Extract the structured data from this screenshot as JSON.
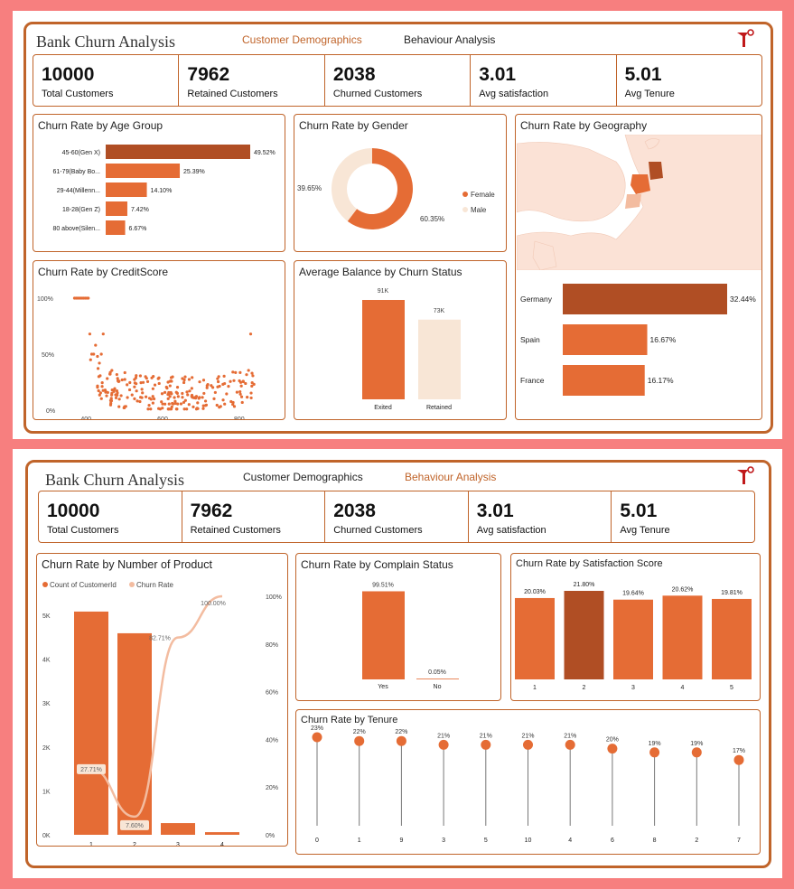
{
  "page1": {
    "title": "Bank Churn Analysis",
    "nav": [
      "Customer Demographics",
      "Behaviour Analysis"
    ],
    "kpis": [
      {
        "value": "10000",
        "label": "Total Customers"
      },
      {
        "value": "7962",
        "label": "Retained Customers"
      },
      {
        "value": "2038",
        "label": "Churned Customers"
      },
      {
        "value": "3.01",
        "label": "Avg satisfaction"
      },
      {
        "value": "5.01",
        "label": "Avg Tenure"
      }
    ],
    "age_title": "Churn Rate by Age Group",
    "gender_title": "Churn Rate by Gender",
    "geo_title": "Churn Rate by Geography",
    "credit_title": "Churn Rate by CreditScore",
    "balance_title": "Average Balance by Churn Status"
  },
  "page2": {
    "title": "Bank Churn Analysis",
    "nav": [
      "Customer Demographics",
      "Behaviour Analysis"
    ],
    "kpis": [
      {
        "value": "10000",
        "label": "Total Customers"
      },
      {
        "value": "7962",
        "label": "Retained Customers"
      },
      {
        "value": "2038",
        "label": "Churned Customers"
      },
      {
        "value": "3.01",
        "label": "Avg satisfaction"
      },
      {
        "value": "5.01",
        "label": "Avg Tenure"
      }
    ],
    "product_title": "Churn Rate by Number of Product",
    "complain_title": "Churn Rate by Complain Status",
    "satisfaction_title": "Churn Rate by Satisfaction Score",
    "tenure_title": "Churn Rate by Tenure"
  },
  "colors": {
    "dark": "#b04e24",
    "main": "#e56c35",
    "light": "#f3bca0",
    "pale": "#f8e6d6",
    "border": "#c0642a"
  },
  "chart_data": [
    {
      "type": "bar",
      "title": "Churn Rate by Age Group",
      "orientation": "horizontal",
      "categories": [
        "45-60(Gen X)",
        "61-79(Baby Bo...",
        "29-44(Millenn...",
        "18-28(Gen Z)",
        "80 above(Silen..."
      ],
      "values": [
        49.52,
        25.39,
        14.1,
        7.42,
        6.67
      ],
      "labels": [
        "49.52%",
        "25.39%",
        "14.10%",
        "7.42%",
        "6.67%"
      ]
    },
    {
      "type": "pie",
      "title": "Churn Rate by Gender",
      "donut": true,
      "categories": [
        "Female",
        "Male"
      ],
      "values": [
        60.35,
        39.65
      ],
      "labels": [
        "60.35%",
        "39.65%"
      ]
    },
    {
      "type": "bar",
      "title": "Churn Rate by Geography",
      "orientation": "horizontal",
      "categories": [
        "Germany",
        "Spain",
        "France"
      ],
      "values": [
        32.44,
        16.67,
        16.17
      ],
      "labels": [
        "32.44%",
        "16.67%",
        "16.17%"
      ]
    },
    {
      "type": "scatter",
      "title": "Churn Rate by CreditScore",
      "xticks": [
        "400",
        "600",
        "800"
      ],
      "yticks": [
        "0%",
        "50%",
        "100%"
      ],
      "xlim": [
        350,
        850
      ],
      "ylim": [
        0,
        100
      ]
    },
    {
      "type": "bar",
      "title": "Average Balance by Churn Status",
      "categories": [
        "Exited",
        "Retained"
      ],
      "values": [
        91,
        73
      ],
      "labels": [
        "91K",
        "73K"
      ]
    },
    {
      "type": "bar",
      "title": "Churn Rate by Number of Product",
      "combo": true,
      "legend": [
        "Count of CustomerId",
        "Churn Rate"
      ],
      "categories": [
        "1",
        "2",
        "3",
        "4"
      ],
      "count": [
        5084,
        4590,
        266,
        60
      ],
      "rate": [
        27.71,
        7.6,
        82.71,
        100.0
      ],
      "rate_labels": [
        "27.71%",
        "7.60%",
        "82.71%",
        "100.00%"
      ],
      "yticks_left": [
        "0K",
        "1K",
        "2K",
        "3K",
        "4K",
        "5K"
      ],
      "yticks_right": [
        "0%",
        "20%",
        "40%",
        "60%",
        "80%",
        "100%"
      ]
    },
    {
      "type": "bar",
      "title": "Churn Rate by Complain Status",
      "categories": [
        "Yes",
        "No"
      ],
      "values": [
        99.51,
        0.05
      ],
      "labels": [
        "99.51%",
        "0.05%"
      ]
    },
    {
      "type": "bar",
      "title": "Churn Rate by Satisfaction Score",
      "categories": [
        "1",
        "2",
        "3",
        "4",
        "5"
      ],
      "values": [
        20.03,
        21.8,
        19.64,
        20.62,
        19.81
      ],
      "labels": [
        "20.03%",
        "21.80%",
        "19.64%",
        "20.62%",
        "19.81%"
      ]
    },
    {
      "type": "line",
      "title": "Churn Rate by Tenure",
      "style": "lollipop",
      "categories": [
        "0",
        "1",
        "9",
        "3",
        "5",
        "10",
        "4",
        "6",
        "8",
        "2",
        "7"
      ],
      "values": [
        23,
        22,
        22,
        21,
        21,
        21,
        21,
        20,
        19,
        19,
        17
      ],
      "labels": [
        "23%",
        "22%",
        "22%",
        "21%",
        "21%",
        "21%",
        "21%",
        "20%",
        "19%",
        "19%",
        "17%"
      ]
    }
  ]
}
